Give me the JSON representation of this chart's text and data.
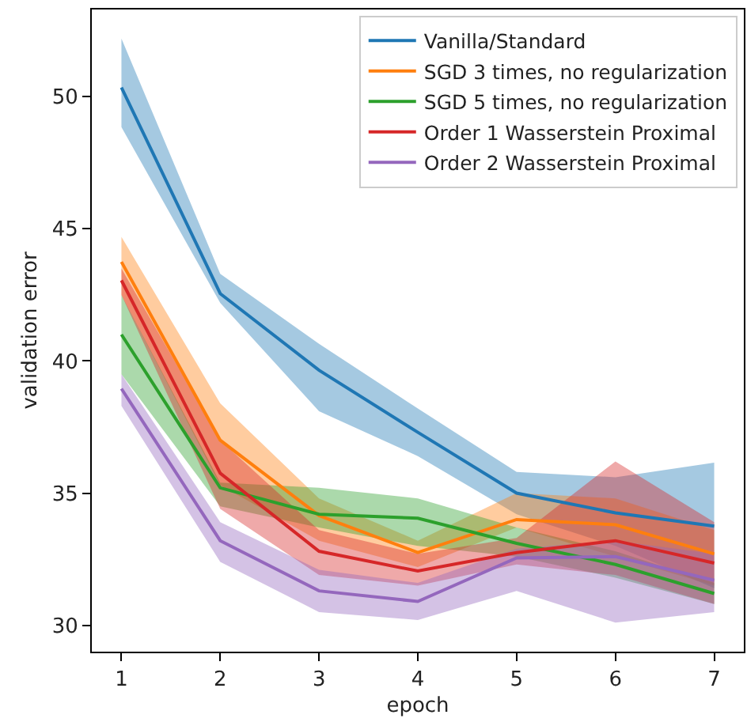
{
  "chart_data": {
    "type": "line",
    "xlabel": "epoch",
    "ylabel": "validation error",
    "x": [
      1,
      2,
      3,
      4,
      5,
      6,
      7
    ],
    "xlim": [
      0.7,
      7.3
    ],
    "ylim": [
      29.0,
      53.3
    ],
    "xticks": [
      1,
      2,
      3,
      4,
      5,
      6,
      7
    ],
    "yticks": [
      30,
      35,
      40,
      45,
      50
    ],
    "grid": false,
    "legend": "top right",
    "marker": "none",
    "line_style": "solid",
    "series": [
      {
        "name": "Vanilla/Standard",
        "color": "#1f77b4",
        "values": [
          50.35,
          42.55,
          39.65,
          37.3,
          35.0,
          34.25,
          33.75
        ],
        "lower": [
          48.85,
          42.2,
          38.1,
          36.4,
          34.2,
          33.0,
          31.4
        ],
        "upper": [
          52.2,
          43.3,
          40.65,
          38.2,
          35.8,
          35.6,
          36.15
        ]
      },
      {
        "name": "SGD 3 times, no regularization",
        "color": "#ff7f0e",
        "values": [
          43.75,
          37.0,
          34.15,
          32.75,
          34.0,
          33.8,
          32.7
        ],
        "lower": [
          42.5,
          35.3,
          33.2,
          32.2,
          33.7,
          32.6,
          31.5
        ],
        "upper": [
          44.7,
          38.4,
          34.8,
          33.2,
          35.0,
          34.8,
          33.6
        ]
      },
      {
        "name": "SGD 5 times, no regularization",
        "color": "#2ca02c",
        "values": [
          41.0,
          35.2,
          34.2,
          34.05,
          33.1,
          32.3,
          31.2
        ],
        "lower": [
          39.5,
          34.5,
          33.7,
          33.0,
          32.6,
          31.8,
          30.8
        ],
        "upper": [
          42.5,
          35.4,
          35.2,
          34.8,
          33.7,
          32.8,
          31.6
        ]
      },
      {
        "name": "Order 1 Wasserstein Proximal",
        "color": "#d62728",
        "values": [
          43.05,
          35.75,
          32.8,
          32.05,
          32.75,
          33.2,
          32.35
        ],
        "lower": [
          42.5,
          34.4,
          31.9,
          31.5,
          32.3,
          31.9,
          30.8
        ],
        "upper": [
          43.5,
          37.0,
          33.6,
          32.7,
          33.3,
          36.2,
          33.9
        ]
      },
      {
        "name": "Order 2 Wasserstein Proximal",
        "color": "#9467bd",
        "values": [
          38.95,
          33.2,
          31.3,
          30.9,
          32.55,
          32.6,
          31.7
        ],
        "lower": [
          38.3,
          32.4,
          30.5,
          30.2,
          31.3,
          30.1,
          30.5
        ],
        "upper": [
          39.5,
          33.9,
          32.1,
          31.6,
          32.9,
          33.2,
          32.7
        ]
      }
    ]
  }
}
